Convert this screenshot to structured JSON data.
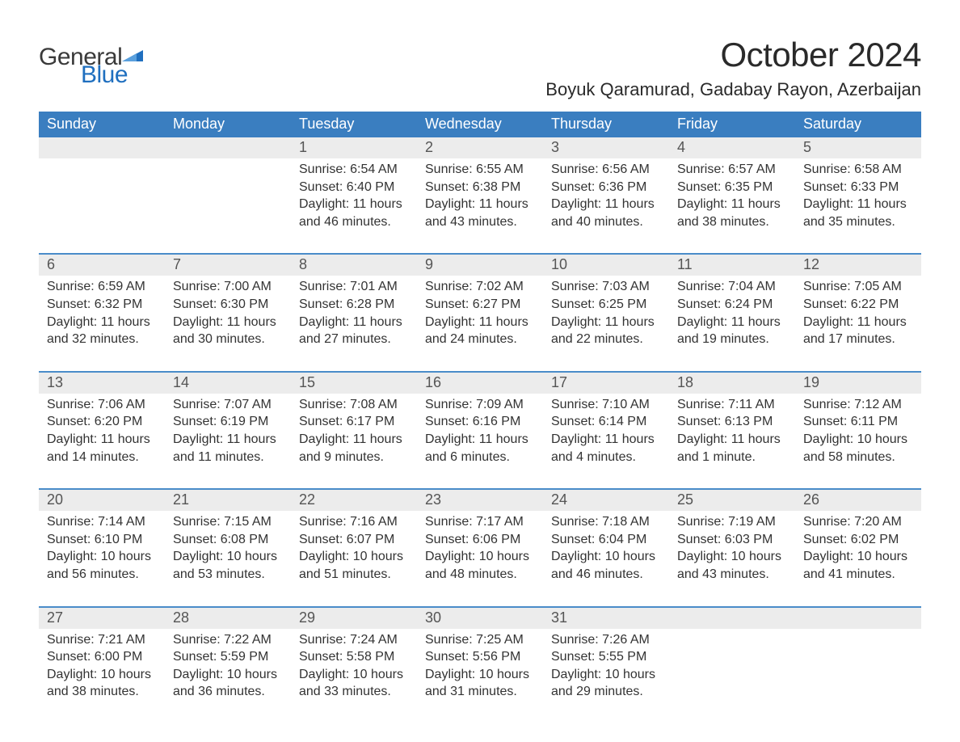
{
  "brand": {
    "word1": "General",
    "word2": "Blue"
  },
  "title": "October 2024",
  "location": "Boyuk Qaramurad, Gadabay Rayon, Azerbaijan",
  "colors": {
    "header_bg": "#3a7ec0",
    "accent": "#1f6fbf",
    "row_separator": "#4a8cc9",
    "date_row_bg": "#ececec",
    "text": "#333333",
    "background": "#ffffff"
  },
  "typography": {
    "title_fontsize_pt": 32,
    "location_fontsize_pt": 17,
    "header_fontsize_pt": 14,
    "date_fontsize_pt": 14,
    "body_fontsize_pt": 12,
    "font_family": "Segoe UI / Arial"
  },
  "layout": {
    "columns": 7,
    "rows": 5,
    "first_day_column_index": 2,
    "aspect_ratio": "1188x918"
  },
  "day_headers": [
    "Sunday",
    "Monday",
    "Tuesday",
    "Wednesday",
    "Thursday",
    "Friday",
    "Saturday"
  ],
  "weeks": [
    [
      null,
      null,
      {
        "date": "1",
        "sunrise": "Sunrise: 6:54 AM",
        "sunset": "Sunset: 6:40 PM",
        "daylight1": "Daylight: 11 hours",
        "daylight2": "and 46 minutes."
      },
      {
        "date": "2",
        "sunrise": "Sunrise: 6:55 AM",
        "sunset": "Sunset: 6:38 PM",
        "daylight1": "Daylight: 11 hours",
        "daylight2": "and 43 minutes."
      },
      {
        "date": "3",
        "sunrise": "Sunrise: 6:56 AM",
        "sunset": "Sunset: 6:36 PM",
        "daylight1": "Daylight: 11 hours",
        "daylight2": "and 40 minutes."
      },
      {
        "date": "4",
        "sunrise": "Sunrise: 6:57 AM",
        "sunset": "Sunset: 6:35 PM",
        "daylight1": "Daylight: 11 hours",
        "daylight2": "and 38 minutes."
      },
      {
        "date": "5",
        "sunrise": "Sunrise: 6:58 AM",
        "sunset": "Sunset: 6:33 PM",
        "daylight1": "Daylight: 11 hours",
        "daylight2": "and 35 minutes."
      }
    ],
    [
      {
        "date": "6",
        "sunrise": "Sunrise: 6:59 AM",
        "sunset": "Sunset: 6:32 PM",
        "daylight1": "Daylight: 11 hours",
        "daylight2": "and 32 minutes."
      },
      {
        "date": "7",
        "sunrise": "Sunrise: 7:00 AM",
        "sunset": "Sunset: 6:30 PM",
        "daylight1": "Daylight: 11 hours",
        "daylight2": "and 30 minutes."
      },
      {
        "date": "8",
        "sunrise": "Sunrise: 7:01 AM",
        "sunset": "Sunset: 6:28 PM",
        "daylight1": "Daylight: 11 hours",
        "daylight2": "and 27 minutes."
      },
      {
        "date": "9",
        "sunrise": "Sunrise: 7:02 AM",
        "sunset": "Sunset: 6:27 PM",
        "daylight1": "Daylight: 11 hours",
        "daylight2": "and 24 minutes."
      },
      {
        "date": "10",
        "sunrise": "Sunrise: 7:03 AM",
        "sunset": "Sunset: 6:25 PM",
        "daylight1": "Daylight: 11 hours",
        "daylight2": "and 22 minutes."
      },
      {
        "date": "11",
        "sunrise": "Sunrise: 7:04 AM",
        "sunset": "Sunset: 6:24 PM",
        "daylight1": "Daylight: 11 hours",
        "daylight2": "and 19 minutes."
      },
      {
        "date": "12",
        "sunrise": "Sunrise: 7:05 AM",
        "sunset": "Sunset: 6:22 PM",
        "daylight1": "Daylight: 11 hours",
        "daylight2": "and 17 minutes."
      }
    ],
    [
      {
        "date": "13",
        "sunrise": "Sunrise: 7:06 AM",
        "sunset": "Sunset: 6:20 PM",
        "daylight1": "Daylight: 11 hours",
        "daylight2": "and 14 minutes."
      },
      {
        "date": "14",
        "sunrise": "Sunrise: 7:07 AM",
        "sunset": "Sunset: 6:19 PM",
        "daylight1": "Daylight: 11 hours",
        "daylight2": "and 11 minutes."
      },
      {
        "date": "15",
        "sunrise": "Sunrise: 7:08 AM",
        "sunset": "Sunset: 6:17 PM",
        "daylight1": "Daylight: 11 hours",
        "daylight2": "and 9 minutes."
      },
      {
        "date": "16",
        "sunrise": "Sunrise: 7:09 AM",
        "sunset": "Sunset: 6:16 PM",
        "daylight1": "Daylight: 11 hours",
        "daylight2": "and 6 minutes."
      },
      {
        "date": "17",
        "sunrise": "Sunrise: 7:10 AM",
        "sunset": "Sunset: 6:14 PM",
        "daylight1": "Daylight: 11 hours",
        "daylight2": "and 4 minutes."
      },
      {
        "date": "18",
        "sunrise": "Sunrise: 7:11 AM",
        "sunset": "Sunset: 6:13 PM",
        "daylight1": "Daylight: 11 hours",
        "daylight2": "and 1 minute."
      },
      {
        "date": "19",
        "sunrise": "Sunrise: 7:12 AM",
        "sunset": "Sunset: 6:11 PM",
        "daylight1": "Daylight: 10 hours",
        "daylight2": "and 58 minutes."
      }
    ],
    [
      {
        "date": "20",
        "sunrise": "Sunrise: 7:14 AM",
        "sunset": "Sunset: 6:10 PM",
        "daylight1": "Daylight: 10 hours",
        "daylight2": "and 56 minutes."
      },
      {
        "date": "21",
        "sunrise": "Sunrise: 7:15 AM",
        "sunset": "Sunset: 6:08 PM",
        "daylight1": "Daylight: 10 hours",
        "daylight2": "and 53 minutes."
      },
      {
        "date": "22",
        "sunrise": "Sunrise: 7:16 AM",
        "sunset": "Sunset: 6:07 PM",
        "daylight1": "Daylight: 10 hours",
        "daylight2": "and 51 minutes."
      },
      {
        "date": "23",
        "sunrise": "Sunrise: 7:17 AM",
        "sunset": "Sunset: 6:06 PM",
        "daylight1": "Daylight: 10 hours",
        "daylight2": "and 48 minutes."
      },
      {
        "date": "24",
        "sunrise": "Sunrise: 7:18 AM",
        "sunset": "Sunset: 6:04 PM",
        "daylight1": "Daylight: 10 hours",
        "daylight2": "and 46 minutes."
      },
      {
        "date": "25",
        "sunrise": "Sunrise: 7:19 AM",
        "sunset": "Sunset: 6:03 PM",
        "daylight1": "Daylight: 10 hours",
        "daylight2": "and 43 minutes."
      },
      {
        "date": "26",
        "sunrise": "Sunrise: 7:20 AM",
        "sunset": "Sunset: 6:02 PM",
        "daylight1": "Daylight: 10 hours",
        "daylight2": "and 41 minutes."
      }
    ],
    [
      {
        "date": "27",
        "sunrise": "Sunrise: 7:21 AM",
        "sunset": "Sunset: 6:00 PM",
        "daylight1": "Daylight: 10 hours",
        "daylight2": "and 38 minutes."
      },
      {
        "date": "28",
        "sunrise": "Sunrise: 7:22 AM",
        "sunset": "Sunset: 5:59 PM",
        "daylight1": "Daylight: 10 hours",
        "daylight2": "and 36 minutes."
      },
      {
        "date": "29",
        "sunrise": "Sunrise: 7:24 AM",
        "sunset": "Sunset: 5:58 PM",
        "daylight1": "Daylight: 10 hours",
        "daylight2": "and 33 minutes."
      },
      {
        "date": "30",
        "sunrise": "Sunrise: 7:25 AM",
        "sunset": "Sunset: 5:56 PM",
        "daylight1": "Daylight: 10 hours",
        "daylight2": "and 31 minutes."
      },
      {
        "date": "31",
        "sunrise": "Sunrise: 7:26 AM",
        "sunset": "Sunset: 5:55 PM",
        "daylight1": "Daylight: 10 hours",
        "daylight2": "and 29 minutes."
      },
      null,
      null
    ]
  ]
}
